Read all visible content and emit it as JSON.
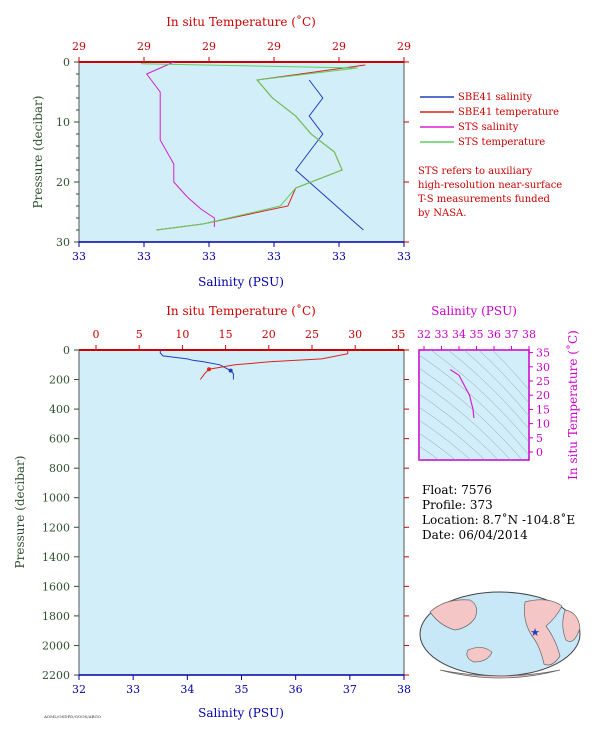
{
  "colors": {
    "plot_bg": "#d2eef8",
    "sbe_salinity": "#1f3fbf",
    "sbe_temperature": "#e0201c",
    "sts_salinity": "#d61fd0",
    "sts_temperature": "#5fcf5f",
    "pressure_axis": "#2f4f2f",
    "temp_axis": "#cc0000",
    "sal_axis": "#0000aa",
    "inset_axis": "#cc00cc",
    "land": "#f5c6c6",
    "ocean": "#c8e8f8"
  },
  "top_chart": {
    "title_top": "In situ Temperature (˚C)",
    "xlabel_bottom": "Salinity (PSU)",
    "ylabel": "Pressure (decibar)",
    "temp_ticks": [
      "29",
      "29",
      "29",
      "29",
      "29",
      "29"
    ],
    "sal_ticks": [
      "33",
      "33",
      "33",
      "33",
      "33",
      "33"
    ],
    "pressure_ticks": [
      "0",
      "10",
      "20",
      "30"
    ]
  },
  "legend": {
    "items": [
      {
        "label": "SBE41 salinity",
        "color": "#1f3fbf"
      },
      {
        "label": "SBE41 temperature",
        "color": "#e0201c"
      },
      {
        "label": "STS salinity",
        "color": "#d61fd0"
      },
      {
        "label": "STS temperature",
        "color": "#5fcf5f"
      }
    ],
    "note_lines": [
      "STS refers to auxiliary",
      "high-resolution near-surface",
      "T-S measurements funded",
      "by NASA."
    ]
  },
  "bottom_chart": {
    "title_top": "In situ Temperature (˚C)",
    "xlabel_bottom": "Salinity (PSU)",
    "ylabel": "Pressure (decibar)",
    "temp_ticks": [
      "0",
      "5",
      "10",
      "15",
      "20",
      "25",
      "30",
      "35"
    ],
    "sal_ticks": [
      "32",
      "33",
      "34",
      "35",
      "36",
      "37",
      "38"
    ],
    "pressure_ticks": [
      "0",
      "200",
      "400",
      "600",
      "800",
      "1000",
      "1200",
      "1400",
      "1600",
      "1800",
      "2000",
      "2200"
    ]
  },
  "inset_chart": {
    "xlabel_top": "Salinity (PSU)",
    "ylabel_right": "In situ Temperature (˚C)",
    "sal_ticks": [
      "32",
      "33",
      "34",
      "35",
      "36",
      "37",
      "38"
    ],
    "temp_ticks": [
      "0",
      "5",
      "10",
      "15",
      "20",
      "25",
      "30",
      "35"
    ]
  },
  "float_info": {
    "float": "Float:  7576",
    "profile": "Profile:  373",
    "location": "Location:  8.7˚N  -104.8˚E",
    "date": "Date:  06/04/2014"
  },
  "footer": {
    "tiny_text": "AOML/OSDPD/GOOS/ARGO"
  },
  "chart_data": [
    {
      "type": "line",
      "title": "",
      "x_top_label": "In situ Temperature (˚C)",
      "xlabel": "Salinity (PSU)",
      "ylabel": "Pressure (decibar)",
      "ylim": [
        30,
        0
      ],
      "series": [
        {
          "name": "SBE41 salinity",
          "axis": "salinity",
          "points": [
            [
              33.05,
              3
            ],
            [
              33.06,
              6
            ],
            [
              33.05,
              9
            ],
            [
              33.06,
              12
            ],
            [
              33.05,
              15
            ],
            [
              33.04,
              18
            ],
            [
              33.05,
              20
            ],
            [
              33.06,
              22
            ],
            [
              33.07,
              24
            ],
            [
              33.08,
              26
            ],
            [
              33.09,
              28
            ]
          ]
        },
        {
          "name": "SBE41 temperature",
          "axis": "temperature",
          "points": [
            [
              29.19,
              0.5
            ],
            [
              29.05,
              3
            ],
            [
              29.07,
              6
            ],
            [
              29.1,
              9
            ],
            [
              29.12,
              12
            ],
            [
              29.15,
              15
            ],
            [
              29.16,
              18
            ],
            [
              29.1,
              21
            ],
            [
              29.09,
              24
            ],
            [
              28.98,
              27
            ],
            [
              28.92,
              28
            ]
          ]
        },
        {
          "name": "STS salinity",
          "axis": "salinity",
          "points": [
            [
              32.95,
              0
            ],
            [
              32.93,
              2
            ],
            [
              32.94,
              5
            ],
            [
              32.94,
              9
            ],
            [
              32.94,
              13
            ],
            [
              32.95,
              17
            ],
            [
              32.95,
              20
            ],
            [
              32.96,
              22.5
            ],
            [
              32.97,
              24.5
            ],
            [
              32.98,
              26
            ],
            [
              32.98,
              27.5
            ]
          ]
        },
        {
          "name": "STS temperature",
          "axis": "temperature",
          "points": [
            [
              28.9,
              0.3
            ],
            [
              29.18,
              1
            ],
            [
              29.05,
              3
            ],
            [
              29.07,
              6
            ],
            [
              29.1,
              9
            ],
            [
              29.12,
              12
            ],
            [
              29.15,
              15
            ],
            [
              29.16,
              18
            ],
            [
              29.1,
              21
            ],
            [
              29.08,
              24
            ],
            [
              28.98,
              27
            ],
            [
              28.92,
              28
            ]
          ]
        }
      ]
    },
    {
      "type": "line",
      "title": "",
      "x_top_label": "In situ Temperature (˚C)",
      "xlabel": "Salinity (PSU)",
      "ylabel": "Pressure (decibar)",
      "xlim_salinity": [
        32,
        38
      ],
      "xlim_temperature": [
        0,
        35
      ],
      "ylim": [
        2200,
        0
      ],
      "series": [
        {
          "name": "SBE41 salinity",
          "axis": "salinity",
          "points": [
            [
              33.5,
              0
            ],
            [
              33.5,
              20
            ],
            [
              33.55,
              40
            ],
            [
              34.0,
              60
            ],
            [
              34.1,
              70
            ],
            [
              34.3,
              80
            ],
            [
              34.6,
              100
            ],
            [
              34.8,
              140
            ],
            [
              34.85,
              160
            ],
            [
              34.85,
              200
            ]
          ]
        },
        {
          "name": "SBE41 temperature",
          "axis": "temperature",
          "points": [
            [
              29.0,
              0
            ],
            [
              29.0,
              25
            ],
            [
              26.0,
              60
            ],
            [
              20.0,
              80
            ],
            [
              16.0,
              100
            ],
            [
              13.0,
              130
            ],
            [
              12.5,
              160
            ],
            [
              12.0,
              200
            ]
          ]
        }
      ]
    },
    {
      "type": "scatter",
      "title": "",
      "xlabel": "Salinity (PSU)",
      "ylabel": "In situ Temperature (˚C)",
      "xlim": [
        32,
        38
      ],
      "ylim": [
        -5,
        35
      ],
      "series": [
        {
          "name": "T-S profile",
          "points": [
            [
              33.5,
              29
            ],
            [
              34.0,
              27
            ],
            [
              34.6,
              20
            ],
            [
              34.8,
              15
            ],
            [
              34.85,
              12
            ]
          ]
        }
      ]
    }
  ]
}
